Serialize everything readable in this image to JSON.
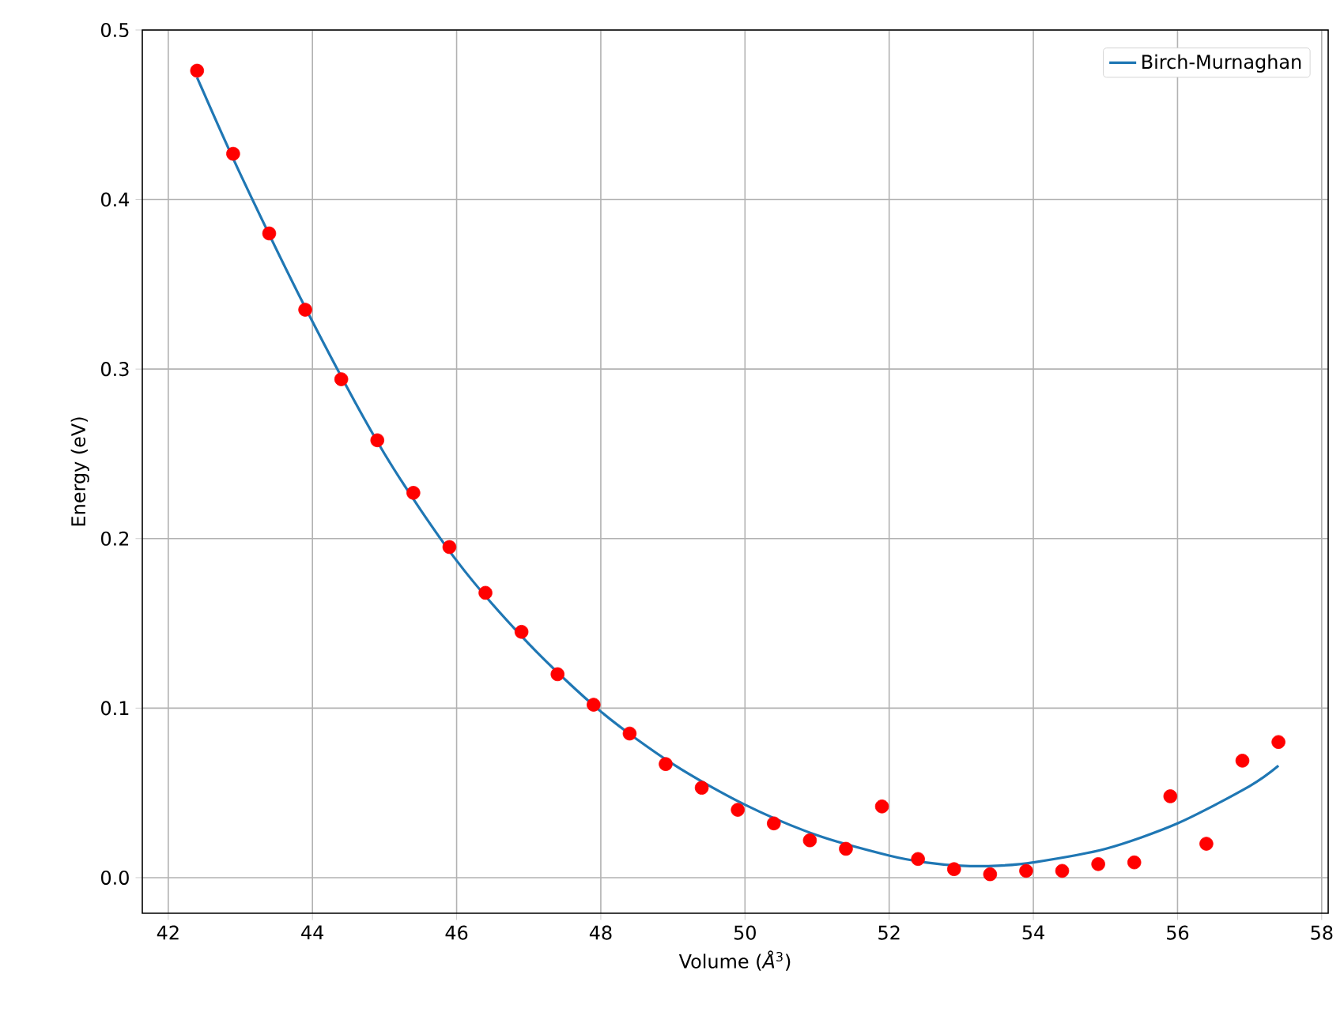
{
  "chart_data": {
    "type": "scatter",
    "xlabel": "Volume (*Å*$^{3}$)",
    "ylabel": "Energy (eV)",
    "xlim": [
      41.64,
      58.09
    ],
    "ylim": [
      -0.021,
      0.5
    ],
    "xticks": [
      42,
      44,
      46,
      48,
      50,
      52,
      54,
      56,
      58
    ],
    "yticks": [
      {
        "value": 0,
        "label": "0.0"
      },
      0.1,
      0.2,
      0.3,
      0.4,
      0.5
    ],
    "grid": true,
    "legend": "top right",
    "series": [
      {
        "type": "scatter",
        "color": "#ff0000",
        "marker": "circle",
        "x": [
          42.4,
          42.9,
          43.4,
          43.9,
          44.4,
          44.9,
          45.4,
          45.9,
          46.4,
          46.9,
          47.4,
          47.9,
          48.4,
          48.9,
          49.4,
          49.9,
          50.4,
          50.9,
          51.4,
          51.9,
          52.4,
          52.9,
          53.4,
          53.9,
          54.4,
          54.9,
          55.4,
          55.9,
          56.4,
          56.9,
          57.4
        ],
        "values": [
          0.476,
          0.427,
          0.38,
          0.335,
          0.294,
          0.258,
          0.227,
          0.195,
          0.168,
          0.145,
          0.12,
          0.102,
          0.085,
          0.067,
          0.053,
          0.04,
          0.032,
          0.022,
          0.017,
          0.042,
          0.011,
          0.005,
          0.002,
          0.004,
          0.004,
          0.008,
          0.009,
          0.048,
          0.02,
          0.069,
          0.08
        ]
      },
      {
        "type": "line",
        "name": "Birch-Murnaghan",
        "color": "#1f77b4",
        "x": [
          42.4,
          43,
          44,
          45,
          46,
          47,
          48,
          49,
          50,
          51,
          52,
          52.5,
          53,
          53.5,
          54,
          55,
          56,
          57,
          57.4
        ],
        "values": [
          0.472,
          0.415,
          0.328,
          0.25,
          0.187,
          0.138,
          0.098,
          0.067,
          0.043,
          0.025,
          0.013,
          0.009,
          0.007,
          0.007,
          0.009,
          0.017,
          0.032,
          0.054,
          0.066
        ]
      }
    ]
  }
}
